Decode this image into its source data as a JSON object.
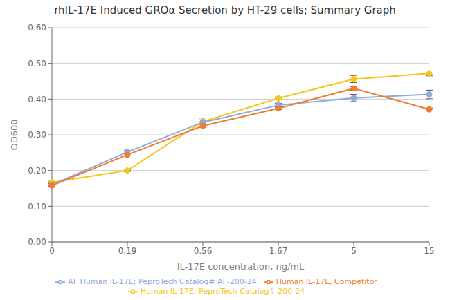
{
  "chart_data": {
    "type": "line",
    "title": "rhIL-17E Induced GROα Secretion by HT-29 cells; Summary Graph",
    "x_label": "IL-17E concentration, ng/mL",
    "y_label": "OD600",
    "categories": [
      "0",
      "0.19",
      "0.56",
      "1.67",
      "5",
      "15"
    ],
    "ylim": [
      0.0,
      0.6
    ],
    "yticks": [
      {
        "value": 0.0,
        "label": "0.00"
      },
      {
        "value": 0.1,
        "label": "0.10"
      },
      {
        "value": 0.2,
        "label": "0.20"
      },
      {
        "value": 0.3,
        "label": "0.30"
      },
      {
        "value": 0.4,
        "label": "0.40"
      },
      {
        "value": 0.5,
        "label": "0.50"
      },
      {
        "value": 0.6,
        "label": "0.60"
      }
    ],
    "grid": true,
    "legend": "bottom",
    "series": [
      {
        "name": "Human IL-17E; PeproTech Catalog# 200-24",
        "color": "#f5c518",
        "marker": "diamond",
        "values": [
          0.167,
          0.2,
          0.337,
          0.402,
          0.456,
          0.472
        ],
        "yerr": [
          0.003,
          0.003,
          0.005,
          0.004,
          0.01,
          0.007
        ]
      },
      {
        "name": "AF Human IL-17E; PeproTech Catalog# AF-200-24",
        "color": "#8faadc",
        "marker": "circle",
        "values": [
          0.16,
          0.252,
          0.335,
          0.383,
          0.403,
          0.413
        ],
        "yerr": [
          0.003,
          0.004,
          0.012,
          0.005,
          0.01,
          0.012
        ]
      },
      {
        "name": "Human IL-17E, Competitor",
        "color": "#ed7d31",
        "marker": "circle",
        "values": [
          0.158,
          0.244,
          0.325,
          0.374,
          0.43,
          0.371
        ],
        "yerr": [
          0.002,
          0.003,
          0.004,
          0.003,
          0.005,
          0.004
        ]
      }
    ]
  }
}
